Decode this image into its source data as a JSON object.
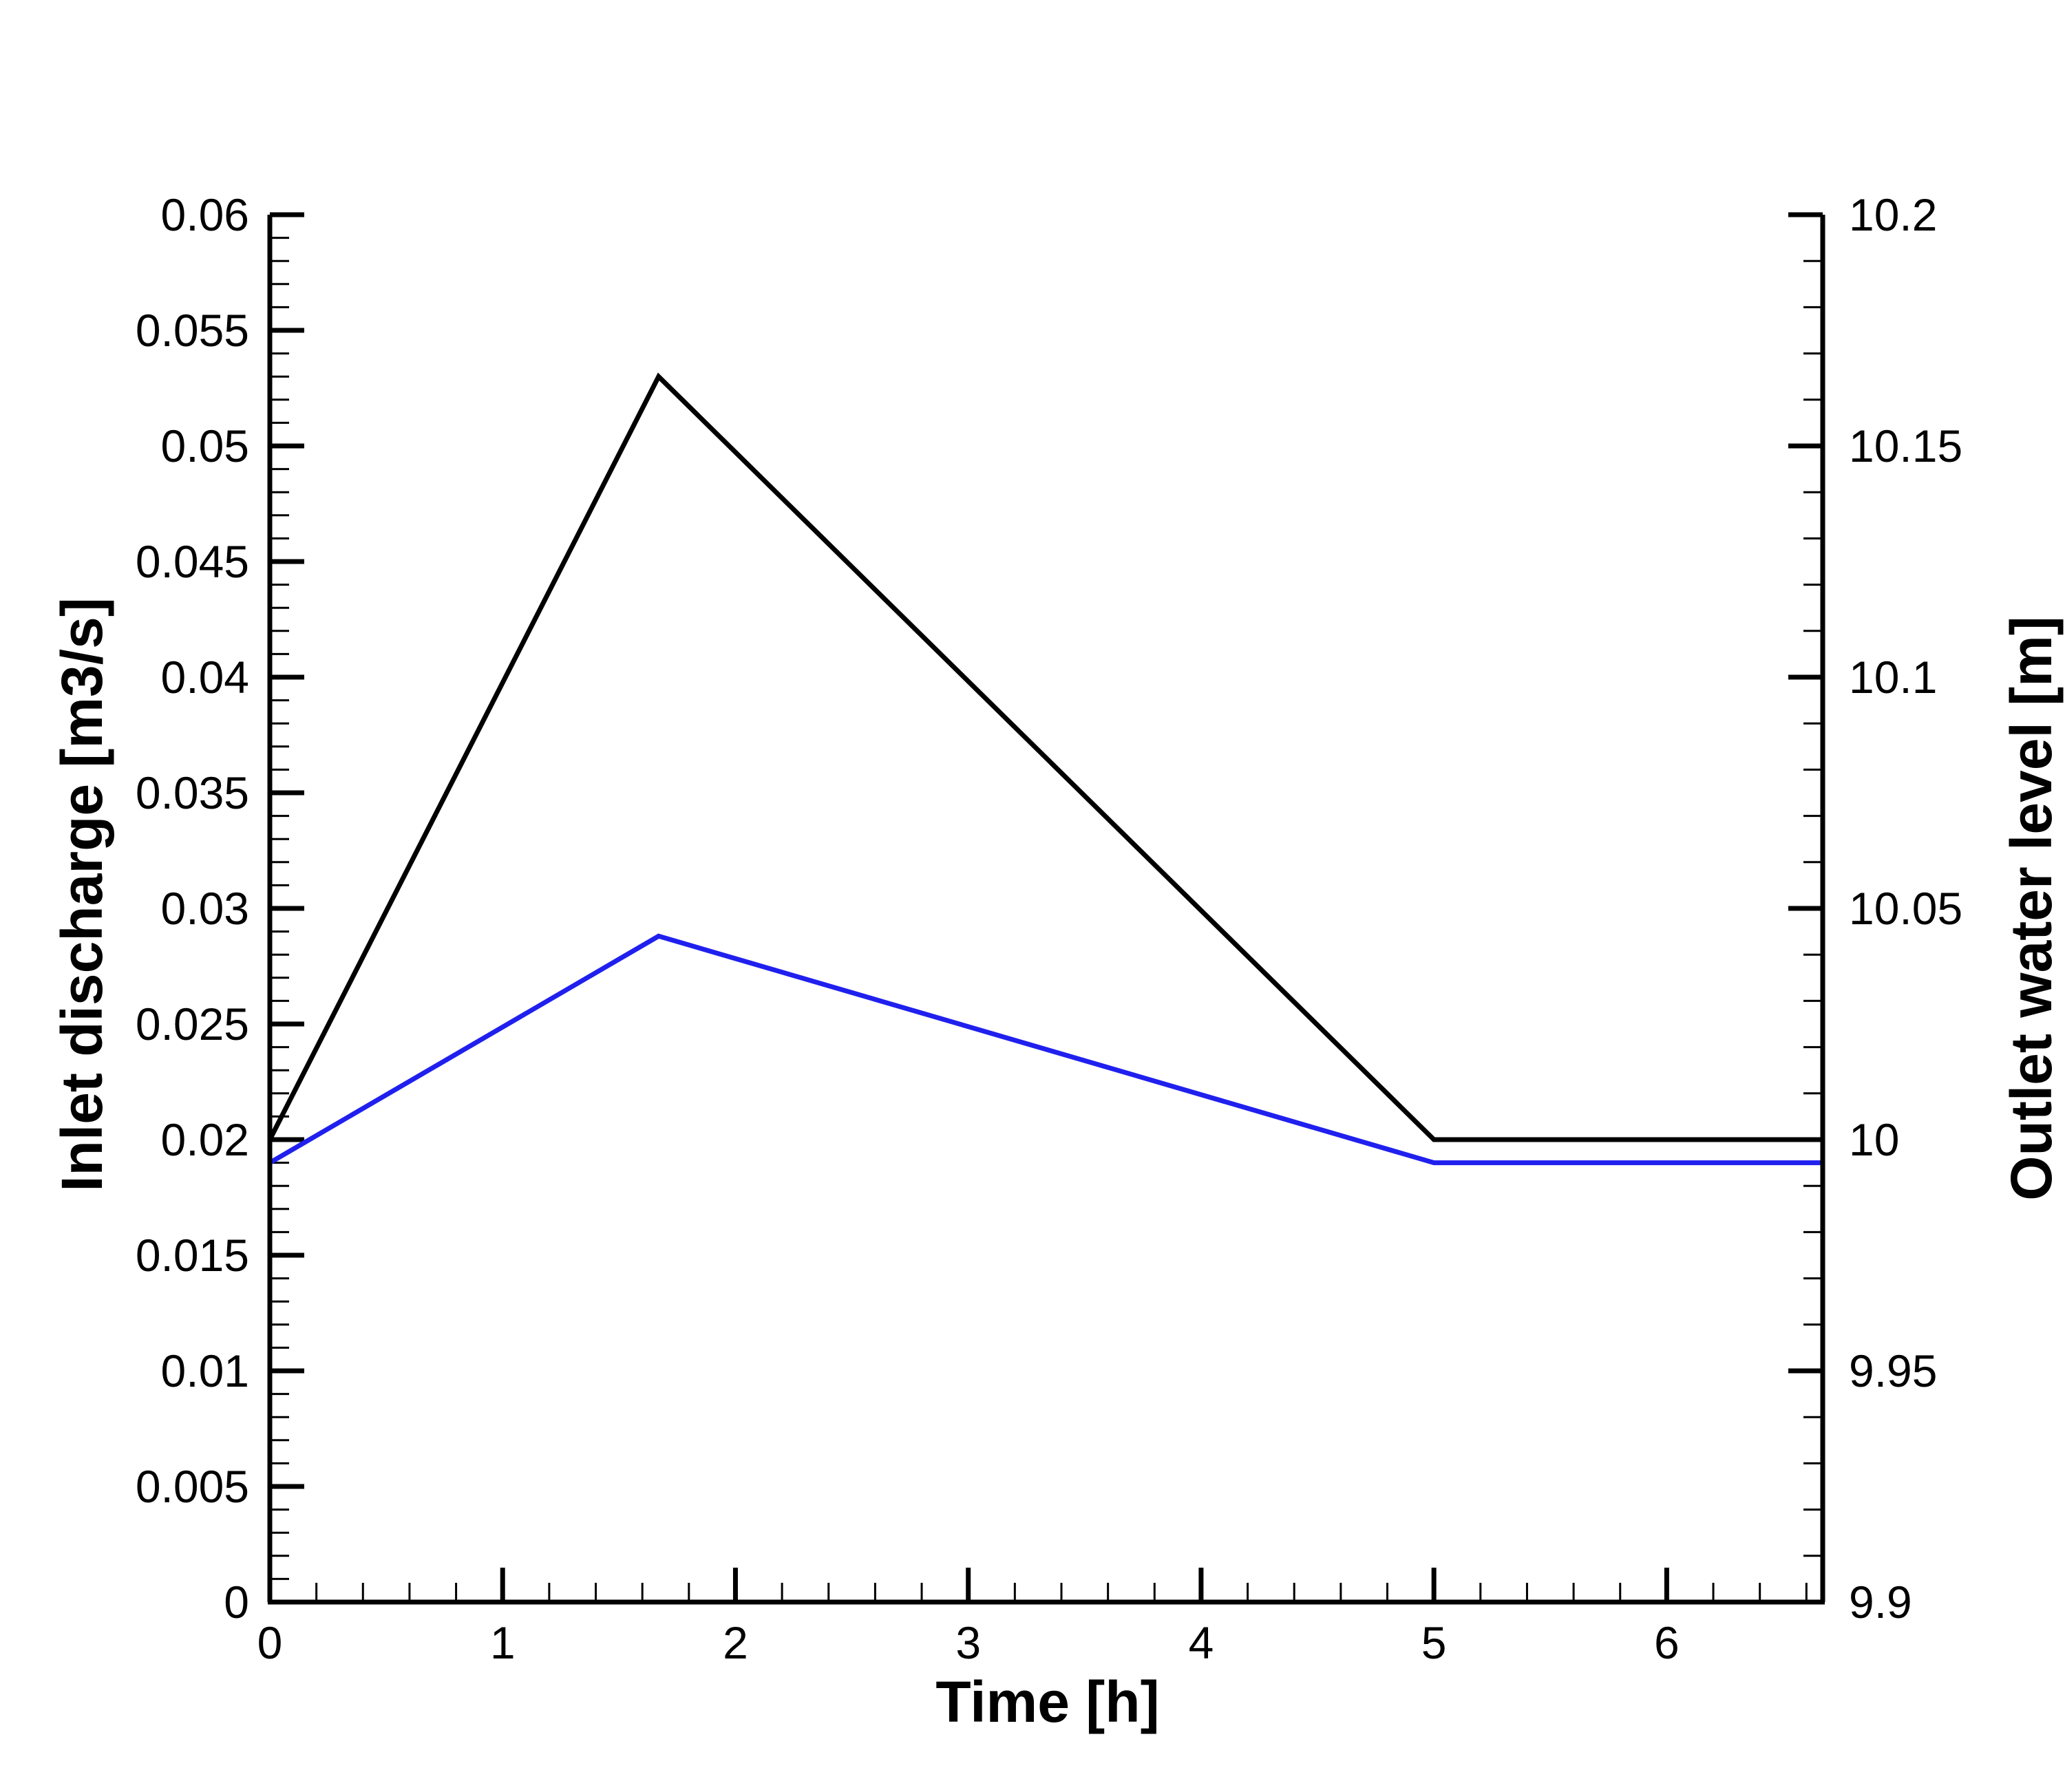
{
  "chart_data": {
    "type": "line",
    "xlabel": "Time [h]",
    "ylabel": "Inlet discharge [m3/s]",
    "y2label": "Outlet water level [m]",
    "xlim": [
      0,
      6.67
    ],
    "ylim": [
      0,
      0.06
    ],
    "y2lim": [
      9.9,
      10.2
    ],
    "xticks": [
      "0",
      "1",
      "2",
      "3",
      "4",
      "5",
      "6"
    ],
    "yticks": [
      "0",
      "0.005",
      "0.01",
      "0.015",
      "0.02",
      "0.025",
      "0.03",
      "0.035",
      "0.04",
      "0.045",
      "0.05",
      "0.055",
      "0.06"
    ],
    "y2ticks": [
      "9.9",
      "9.95",
      "10",
      "10.05",
      "10.1",
      "10.15",
      "10.2"
    ],
    "grid": false,
    "series": [
      {
        "axis": "left",
        "color": "#000000",
        "x": [
          0,
          1.67,
          5.0,
          6.67
        ],
        "y": [
          0.02,
          0.053,
          0.02,
          0.02
        ]
      },
      {
        "axis": "right",
        "color": "#2020ee",
        "x": [
          0,
          1.67,
          5.0,
          6.67
        ],
        "y": [
          9.995,
          10.044,
          9.995,
          9.995
        ]
      }
    ]
  }
}
